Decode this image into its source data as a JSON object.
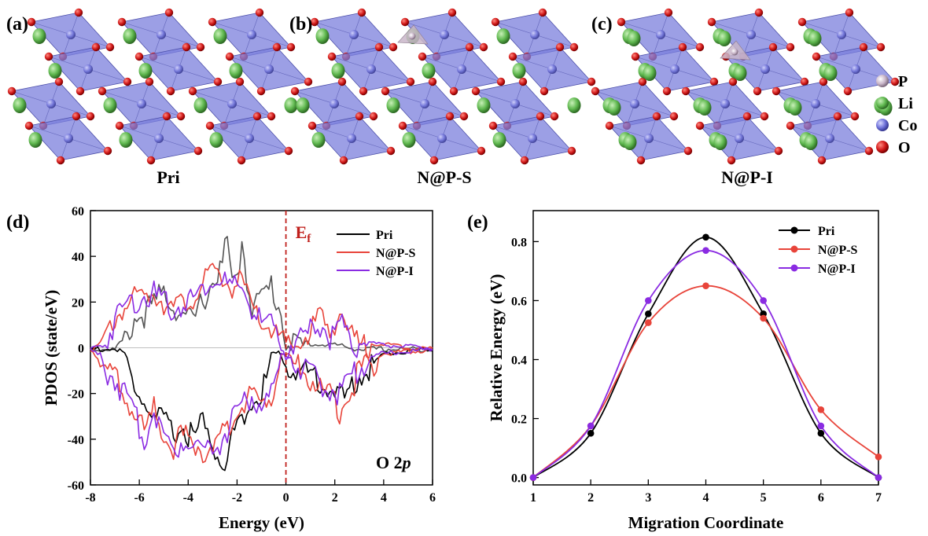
{
  "panels": {
    "a": {
      "letter": "(a)",
      "caption": "Pri"
    },
    "b": {
      "letter": "(b)",
      "caption": "N@P-S"
    },
    "c": {
      "letter": "(c)",
      "caption": "N@P-I"
    },
    "d": {
      "letter": "(d)"
    },
    "e": {
      "letter": "(e)"
    }
  },
  "atom_legend": [
    {
      "symbol": "P",
      "color": "#c9b6c9"
    },
    {
      "symbol": "Li",
      "color": "#5fb84f"
    },
    {
      "symbol": "Co",
      "color": "#6f72d9"
    },
    {
      "symbol": "O",
      "color": "#d21a1a"
    }
  ],
  "colors": {
    "pri": "#000000",
    "nps": "#e8443a",
    "npi": "#8a2be2",
    "fermi": "#c0201c",
    "octahedron": "#7b7fdc"
  },
  "chart_data": [
    {
      "type": "line",
      "panel": "d",
      "ylabel": "PDOS (state/eV)",
      "xlabel": "Energy (eV)",
      "xlim": [
        -8,
        6
      ],
      "ylim": [
        -60,
        60
      ],
      "xticks": [
        -8,
        -6,
        -4,
        -2,
        0,
        2,
        4,
        6
      ],
      "yticks": [
        -60,
        -40,
        -20,
        0,
        20,
        40,
        60
      ],
      "fermi_label": "E",
      "fermi_sub": "f",
      "fermi_x": 0,
      "annotation": "O 2",
      "annotation_italic": "p",
      "legend_position": "top-right",
      "series": [
        {
          "name": "Pri",
          "color": "#000000",
          "x": [
            -8,
            -7,
            -6.6,
            -6.2,
            -5.8,
            -5.4,
            -5.0,
            -4.6,
            -4.2,
            -3.8,
            -3.4,
            -3.0,
            -2.6,
            -2.4,
            -2.2,
            -2.0,
            -1.8,
            -1.6,
            -1.4,
            -1.0,
            -0.6,
            -0.3,
            0.0,
            0.4,
            0.8,
            1.2,
            1.6,
            2.0,
            2.4,
            3.0,
            4.0,
            5.0,
            6.0
          ],
          "up": [
            0,
            0,
            5,
            16,
            18,
            22,
            28,
            22,
            17,
            14,
            24,
            32,
            40,
            50,
            30,
            32,
            50,
            34,
            22,
            25,
            30,
            22,
            8,
            4,
            3,
            2,
            2,
            2,
            1,
            0,
            0,
            0,
            0
          ],
          "down": [
            0,
            0,
            -2,
            -16,
            -20,
            -28,
            -30,
            -34,
            -32,
            -36,
            -30,
            -40,
            -46,
            -48,
            -36,
            -30,
            -26,
            -24,
            -22,
            -18,
            -2,
            -2,
            -4,
            -6,
            -8,
            -10,
            -12,
            -16,
            -20,
            -8,
            -2,
            -1,
            0
          ]
        },
        {
          "name": "N@P-S",
          "color": "#e8443a",
          "x": [
            -8,
            -7.6,
            -7.0,
            -6.6,
            -6.2,
            -5.8,
            -5.4,
            -5.0,
            -4.6,
            -4.2,
            -3.8,
            -3.4,
            -3.0,
            -2.6,
            -2.2,
            -1.8,
            -1.4,
            -1.0,
            -0.6,
            -0.2,
            0.2,
            0.6,
            1.0,
            1.4,
            1.8,
            2.2,
            2.6,
            3.0,
            4.0,
            5.0,
            6.0
          ],
          "up": [
            0,
            2,
            16,
            22,
            24,
            26,
            28,
            24,
            20,
            22,
            26,
            30,
            36,
            34,
            30,
            32,
            20,
            14,
            12,
            6,
            2,
            6,
            10,
            18,
            8,
            22,
            8,
            4,
            2,
            1,
            0
          ],
          "down": [
            0,
            -4,
            -10,
            -18,
            -26,
            -34,
            -24,
            -34,
            -40,
            -36,
            -38,
            -42,
            -44,
            -36,
            -28,
            -22,
            -18,
            -22,
            -18,
            -2,
            -3,
            -6,
            -10,
            -16,
            -18,
            -24,
            -18,
            -6,
            -2,
            -1,
            0
          ]
        },
        {
          "name": "N@P-I",
          "color": "#8a2be2",
          "x": [
            -8,
            -7.6,
            -7.0,
            -6.6,
            -6.2,
            -5.8,
            -5.4,
            -5.0,
            -4.6,
            -4.2,
            -3.8,
            -3.4,
            -3.0,
            -2.6,
            -2.2,
            -1.8,
            -1.4,
            -1.0,
            -0.6,
            -0.2,
            0.2,
            0.6,
            1.0,
            1.4,
            1.8,
            2.2,
            2.6,
            3.0,
            4.0,
            5.0,
            6.0
          ],
          "up": [
            0,
            2,
            15,
            22,
            24,
            27,
            26,
            23,
            20,
            23,
            25,
            29,
            34,
            33,
            28,
            30,
            20,
            14,
            12,
            6,
            2,
            6,
            10,
            14,
            8,
            14,
            6,
            3,
            2,
            1,
            0
          ],
          "down": [
            0,
            -4,
            -10,
            -18,
            -27,
            -36,
            -24,
            -34,
            -44,
            -36,
            -38,
            -40,
            -42,
            -36,
            -28,
            -22,
            -18,
            -22,
            -18,
            -2,
            -3,
            -6,
            -10,
            -12,
            -14,
            -16,
            -12,
            -4,
            -2,
            -1,
            0
          ]
        }
      ]
    },
    {
      "type": "line",
      "panel": "e",
      "ylabel": "Relative Energy (eV)",
      "xlabel": "Migration Coordinate",
      "xlim": [
        1,
        7
      ],
      "ylim": [
        0,
        0.9
      ],
      "xticks": [
        1,
        2,
        3,
        4,
        5,
        6,
        7
      ],
      "yticks": [
        0.0,
        0.2,
        0.4,
        0.6,
        0.8
      ],
      "ytick_labels": [
        "0.0",
        "0.2",
        "0.4",
        "0.6",
        "0.8"
      ],
      "legend_position": "top-right",
      "x": [
        1,
        2,
        3,
        4,
        5,
        6,
        7
      ],
      "series": [
        {
          "name": "Pri",
          "color": "#000000",
          "values": [
            0.0,
            0.15,
            0.555,
            0.815,
            0.555,
            0.15,
            0.0
          ]
        },
        {
          "name": "N@P-S",
          "color": "#e8443a",
          "values": [
            0.0,
            0.175,
            0.525,
            0.65,
            0.54,
            0.23,
            0.07
          ]
        },
        {
          "name": "N@P-I",
          "color": "#8a2be2",
          "values": [
            0.0,
            0.175,
            0.6,
            0.77,
            0.6,
            0.175,
            0.0
          ]
        }
      ]
    }
  ]
}
